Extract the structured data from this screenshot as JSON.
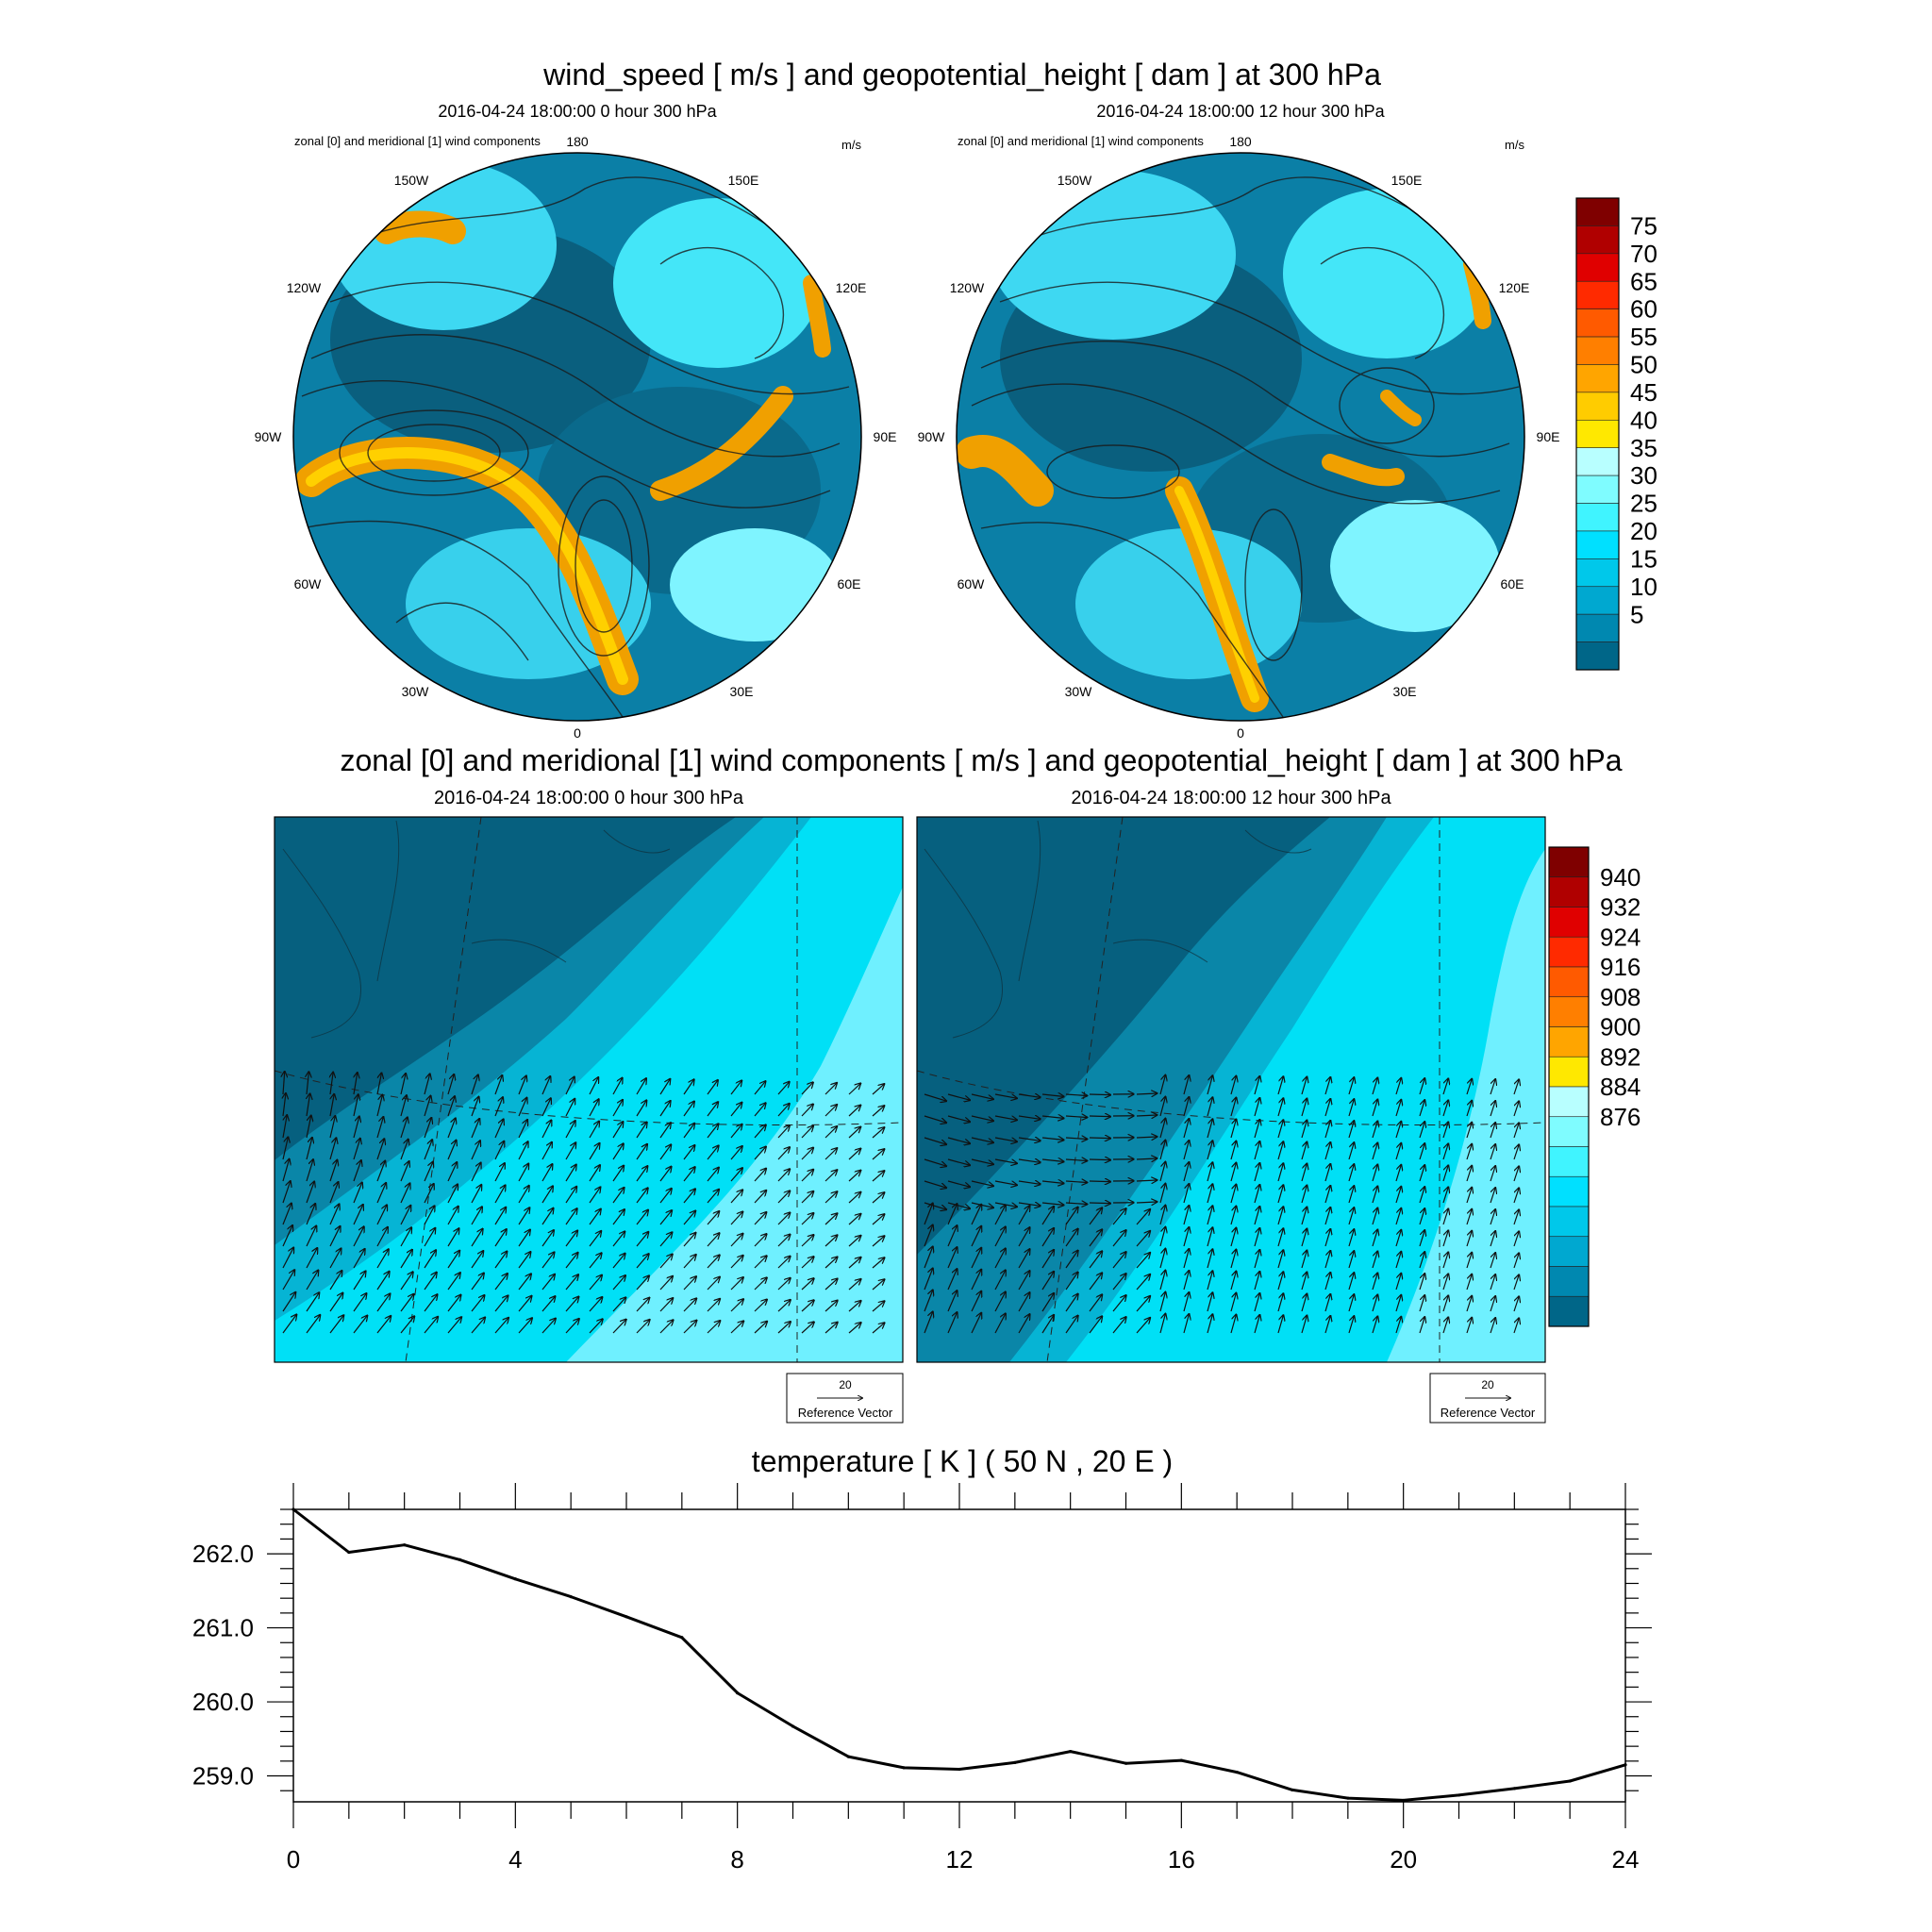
{
  "colors": {
    "ocean": "#0b5f7e",
    "jet": "#f0a500",
    "contour": "#1a1a1a"
  },
  "polar_section": {
    "title": "wind_speed [ m/s ] and geopotential_height [ dam ] at 300 hPa",
    "panels": [
      {
        "subtitle": "2016-04-24 18:00:00 0 hour 300 hPa",
        "left_label": "zonal [0] and meridional [1] wind components",
        "right_label": "m/s"
      },
      {
        "subtitle": "2016-04-24 18:00:00 12 hour 300 hPa",
        "left_label": "zonal [0] and meridional [1] wind components",
        "right_label": "m/s"
      }
    ],
    "lon_labels": [
      "180",
      "150E",
      "120E",
      "90E",
      "60E",
      "30E",
      "0",
      "30W",
      "60W",
      "90W",
      "120W",
      "150W"
    ],
    "colorbar": {
      "labels": [
        "75",
        "70",
        "65",
        "60",
        "55",
        "50",
        "45",
        "40",
        "35",
        "30",
        "25",
        "20",
        "15",
        "10",
        "5"
      ],
      "colors": [
        "#7f0000",
        "#b00000",
        "#e00000",
        "#ff2a00",
        "#ff5a00",
        "#ff7f00",
        "#ffa500",
        "#ffcc00",
        "#ffe800",
        "#b8ffff",
        "#7ffcff",
        "#40f4ff",
        "#00e0ff",
        "#00c8ea",
        "#00a8d0",
        "#0088b0",
        "#006688"
      ]
    }
  },
  "regional_section": {
    "title": "zonal [0] and meridional [1] wind components [ m/s ] and geopotential_height [ dam ] at 300 hPa",
    "panels": [
      {
        "subtitle": "2016-04-24 18:00:00 0 hour 300 hPa",
        "ref_value": "20",
        "ref_label": "Reference Vector"
      },
      {
        "subtitle": "2016-04-24 18:00:00 12 hour 300 hPa",
        "ref_value": "20",
        "ref_label": "Reference Vector"
      }
    ],
    "colorbar": {
      "labels": [
        "940",
        "932",
        "924",
        "916",
        "908",
        "900",
        "892",
        "884",
        "876"
      ],
      "colors": [
        "#7f0000",
        "#b00000",
        "#e00000",
        "#ff2a00",
        "#ff5a00",
        "#ff7f00",
        "#ffa500",
        "#ffe800",
        "#b8ffff",
        "#7ffcff",
        "#40f4ff",
        "#00e0ff",
        "#00c8ea",
        "#00a8d0",
        "#0088b0",
        "#006688"
      ]
    }
  },
  "chart_data": {
    "type": "line",
    "title": "temperature [ K ] ( 50 N , 20 E )",
    "xlabel": "",
    "ylabel": "",
    "x": [
      0,
      1,
      2,
      3,
      4,
      5,
      6,
      7,
      8,
      9,
      10,
      11,
      12,
      13,
      14,
      15,
      16,
      17,
      18,
      19,
      20,
      21,
      22,
      23,
      24
    ],
    "values": [
      262.6,
      262.02,
      262.12,
      261.92,
      261.66,
      261.42,
      261.15,
      260.87,
      260.12,
      259.67,
      259.26,
      259.11,
      259.09,
      259.18,
      259.33,
      259.17,
      259.21,
      259.05,
      258.81,
      258.7,
      258.67,
      258.74,
      258.83,
      258.93,
      259.15
    ],
    "xlim": [
      0,
      24
    ],
    "ylim": [
      258.65,
      262.6
    ],
    "xticks": [
      0,
      4,
      8,
      12,
      16,
      20,
      24
    ],
    "xtick_labels": [
      "0",
      "4",
      "8",
      "12",
      "16",
      "20",
      "24"
    ],
    "yticks": [
      259,
      260,
      261,
      262
    ],
    "ytick_labels": [
      "259.0",
      "260.0",
      "261.0",
      "262.0"
    ],
    "grid": false,
    "legend": "none"
  }
}
